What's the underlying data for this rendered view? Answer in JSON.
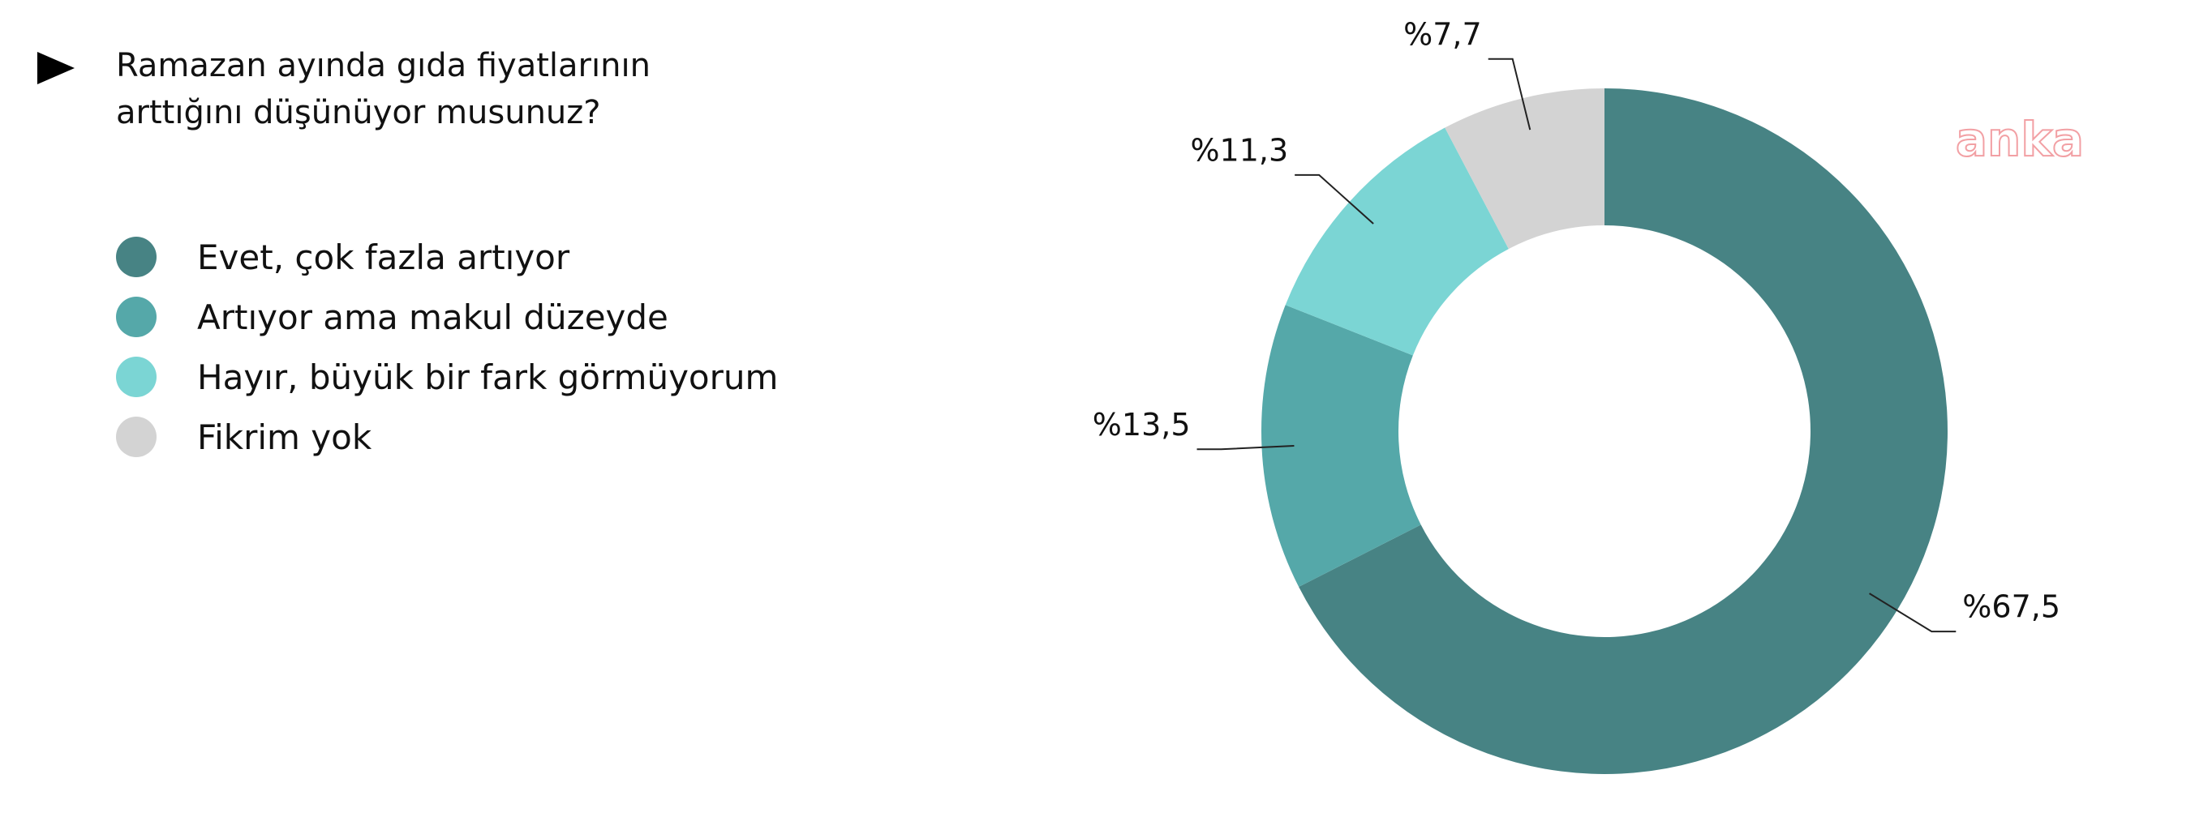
{
  "chart_data": {
    "type": "donut",
    "title": "Ramazan ayında gıda fiyatlarının arttığını düşünüyor musunuz?",
    "categories": [
      "Evet, çok fazla artıyor",
      "Artıyor ama makul düzeyde",
      "Hayır, büyük bir fark görmüyorum",
      "Fikrim yok"
    ],
    "values": [
      67.5,
      13.5,
      11.3,
      7.7
    ],
    "value_labels": [
      "%67,5",
      "%13,5",
      "%11,3",
      "%7,7"
    ],
    "colors": [
      "#478384",
      "#55a8a9",
      "#7bd5d4",
      "#d3d3d3"
    ],
    "watermark": "anka"
  }
}
